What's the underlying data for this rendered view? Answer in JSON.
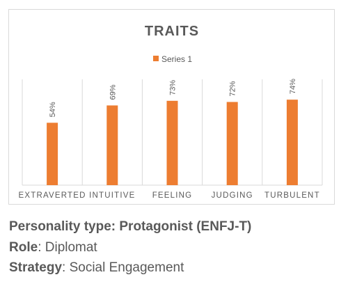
{
  "chart_data": {
    "type": "bar",
    "title": "TRAITS",
    "categories": [
      "EXTRAVERTED",
      "INTUITIVE",
      "FEELING",
      "JUDGING",
      "TURBULENT"
    ],
    "series": [
      {
        "name": "Series 1",
        "values": [
          54,
          69,
          73,
          72,
          74
        ],
        "labels": [
          "54%",
          "69%",
          "73%",
          "72%",
          "74%"
        ]
      }
    ],
    "ylim": [
      0,
      100
    ],
    "grid": "vertical category dividers",
    "legend": "top",
    "colors": {
      "bar": "#ED7D31",
      "grid": "#d9d9d9",
      "text": "#595959"
    }
  },
  "info": {
    "type_label": "Personality type: Protagonist (ENFJ-T)",
    "role_label": "Role",
    "role_value": ": Diplomat",
    "strategy_label": "Strategy",
    "strategy_value": ": Social Engagement"
  }
}
